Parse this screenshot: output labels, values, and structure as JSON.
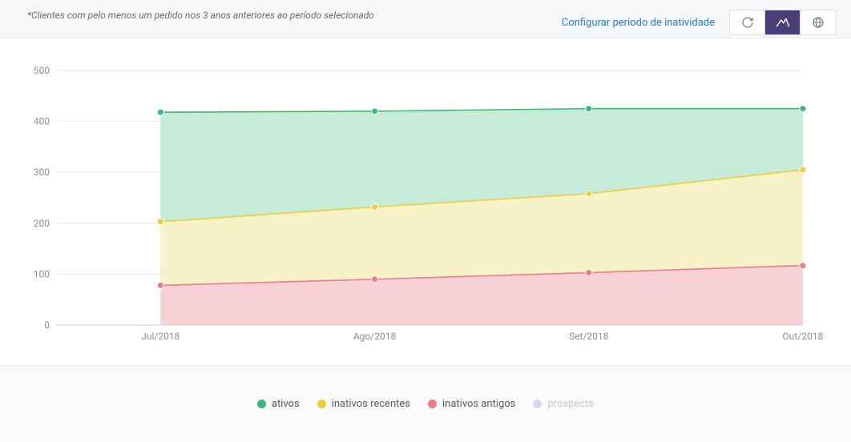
{
  "header": {
    "footnote": "*Clientes com pelo menos um pedido nos 3 anos anteriores ao período selecionado",
    "config_link": "Configurar período de inatividade",
    "view_buttons": {
      "active_index": 1
    }
  },
  "chart": {
    "type": "area",
    "background_color": "#ffffff",
    "grid_color": "#e7e8ea",
    "axis_text_color": "#8a8f95",
    "axis_font_size": 12,
    "ylim": [
      0,
      500
    ],
    "ytick_step": 100,
    "yticks": [
      0,
      100,
      200,
      300,
      400,
      500
    ],
    "categories": [
      "Jul/2018",
      "Ago/2018",
      "Set/2018",
      "Out/2018"
    ],
    "series": [
      {
        "key": "inativos_antigos",
        "label": "inativos antigos",
        "color": "#f1798a",
        "fill": "#f7c9cf",
        "values": [
          78,
          90,
          103,
          117
        ]
      },
      {
        "key": "inativos_recentes",
        "label": "inativos recentes",
        "color": "#e9cf3c",
        "fill": "#f7f0c0",
        "values": [
          203,
          232,
          258,
          305
        ]
      },
      {
        "key": "ativos",
        "label": "ativos",
        "color": "#39b87f",
        "fill": "#bce8d2",
        "values": [
          418,
          420,
          425,
          425
        ]
      },
      {
        "key": "prospects",
        "label": "prospects",
        "color": "#c9c9e6",
        "fill": "#e6e6f2",
        "values": null,
        "hidden": true
      }
    ],
    "marker_radius": 4,
    "line_width": 1.6
  },
  "legend": {
    "items": [
      {
        "label": "ativos",
        "color": "#39b87f",
        "muted": false
      },
      {
        "label": "inativos recentes",
        "color": "#e9cf3c",
        "muted": false
      },
      {
        "label": "inativos antigos",
        "color": "#f1798a",
        "muted": false
      },
      {
        "label": "prospects",
        "color": "#d6d6ee",
        "muted": true
      }
    ]
  }
}
